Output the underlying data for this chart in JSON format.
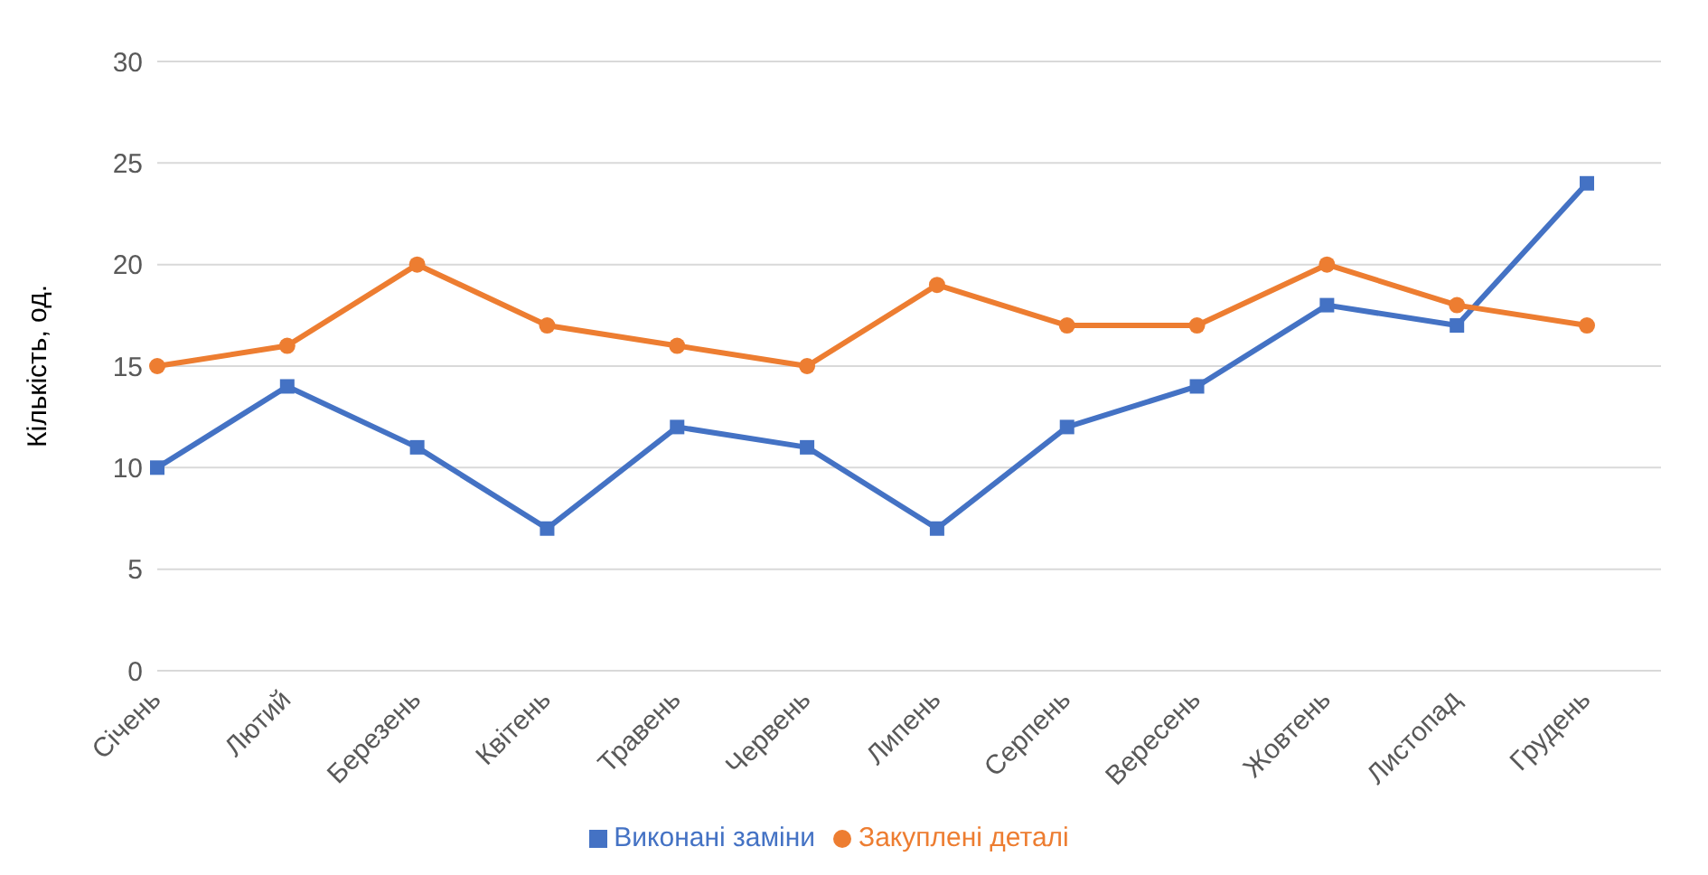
{
  "chart_data": {
    "type": "line",
    "ylabel": "Кількість, од.",
    "categories": [
      "Січень",
      "Лютий",
      "Березень",
      "Квітень",
      "Травень",
      "Червень",
      "Липень",
      "Серпень",
      "Вересень",
      "Жовтень",
      "Листопад",
      "Грудень"
    ],
    "series": [
      {
        "name": "Виконані заміни",
        "color": "#4472c4",
        "marker": "square",
        "values": [
          10,
          14,
          11,
          7,
          12,
          11,
          7,
          12,
          14,
          18,
          17,
          24
        ]
      },
      {
        "name": "Закуплені деталі",
        "color": "#ed7d31",
        "marker": "circle",
        "values": [
          15,
          16,
          20,
          17,
          16,
          15,
          19,
          17,
          17,
          20,
          18,
          17
        ]
      }
    ],
    "ylim": [
      0,
      30
    ],
    "yticks": [
      0,
      5,
      10,
      15,
      20,
      25,
      30
    ],
    "grid": "y",
    "legend": "bottom",
    "line_style": "solid"
  }
}
